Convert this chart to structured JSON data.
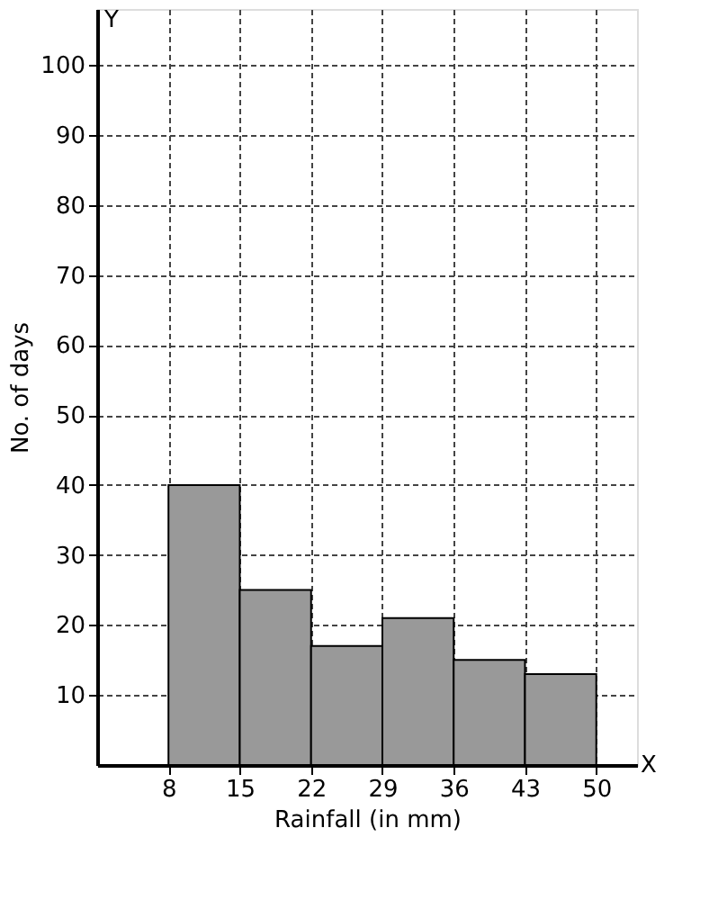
{
  "chart_data": {
    "type": "histogram",
    "xlabel": "Rainfall (in mm)",
    "ylabel": "No. of days",
    "bins": [
      8,
      15,
      22,
      29,
      36,
      43,
      50
    ],
    "values": [
      40,
      25,
      17,
      21,
      15,
      13
    ],
    "color": "#999999",
    "xlim": [
      1,
      54
    ],
    "ylim": [
      0,
      108
    ],
    "xticks": [
      8,
      15,
      22,
      29,
      36,
      43,
      50
    ],
    "yticks": [
      10,
      20,
      30,
      40,
      50,
      60,
      70,
      80,
      90,
      100
    ],
    "annotations": [
      "X",
      "Y"
    ],
    "grid": true
  }
}
